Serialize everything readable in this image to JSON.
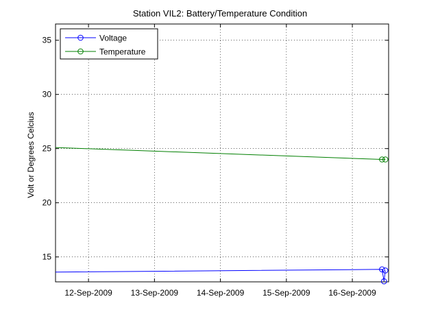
{
  "chart_data": {
    "type": "line",
    "title": "Station VIL2: Battery/Temperature Condition",
    "xlabel": "",
    "ylabel": "Volt or Degrees Celcius",
    "xlim": [
      11.5,
      16.55
    ],
    "ylim": [
      12.7,
      36.5
    ],
    "xticks": [
      {
        "value": 12,
        "label": "12-Sep-2009"
      },
      {
        "value": 13,
        "label": "13-Sep-2009"
      },
      {
        "value": 14,
        "label": "14-Sep-2009"
      },
      {
        "value": 15,
        "label": "15-Sep-2009"
      },
      {
        "value": 16,
        "label": "16-Sep-2009"
      }
    ],
    "yticks": [
      {
        "value": 15,
        "label": "15"
      },
      {
        "value": 20,
        "label": "20"
      },
      {
        "value": 25,
        "label": "25"
      },
      {
        "value": 30,
        "label": "30"
      },
      {
        "value": 35,
        "label": "35"
      }
    ],
    "grid": true,
    "legend_position": "top-left",
    "series": [
      {
        "name": "Voltage",
        "color": "#0000ff",
        "x": [
          11.5,
          16.45,
          16.48,
          16.5
        ],
        "y": [
          13.6,
          13.85,
          12.75,
          13.75
        ],
        "markers_x": [
          16.45,
          16.48,
          16.5
        ],
        "markers_y": [
          13.85,
          12.75,
          13.75
        ]
      },
      {
        "name": "Temperature",
        "color": "#007f00",
        "x": [
          11.5,
          16.45,
          16.5
        ],
        "y": [
          25.1,
          24.0,
          24.0
        ],
        "markers_x": [
          16.45,
          16.5
        ],
        "markers_y": [
          24.0,
          24.0
        ]
      }
    ]
  }
}
